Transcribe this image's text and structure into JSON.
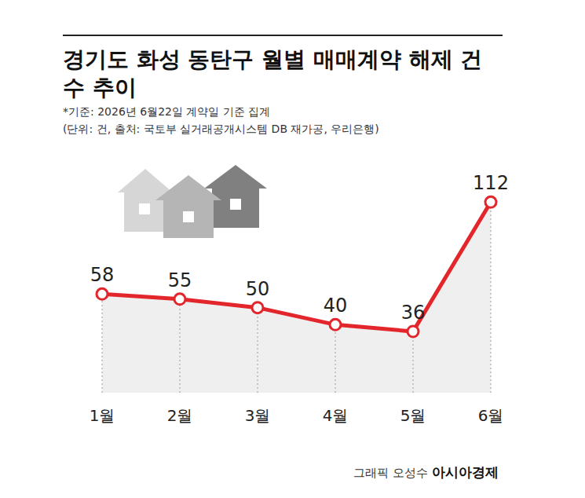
{
  "chart_data": {
    "type": "line",
    "title": "경기도 화성 동탄구 월별 매매계약 해제 건수 추이",
    "note": "*기준: 2026년 6월22일 계약일 기준 집계",
    "subtitle": "(단위: 건, 출처: 국토부 실거래공개시스템 DB 재가공, 우리은행)",
    "credit": "그래픽 오성수",
    "source_brand": "아시아경제",
    "categories": [
      "1월",
      "2월",
      "3월",
      "4월",
      "5월",
      "6월"
    ],
    "values": [
      58,
      55,
      50,
      40,
      36,
      112
    ],
    "color": "#e3262c",
    "ylim": [
      0,
      120
    ],
    "grid": false,
    "data_labels": true,
    "tick_labels": "x",
    "marker": "circle"
  }
}
